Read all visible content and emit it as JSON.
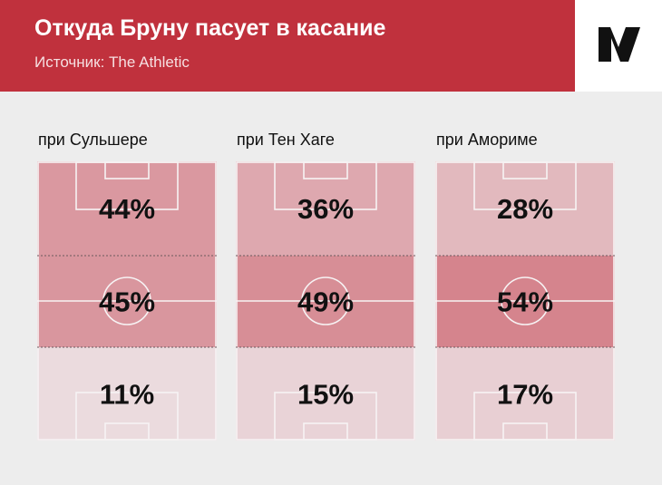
{
  "header": {
    "title": "Откуда Бруну пасует в касание",
    "subtitle": "Источник: The Athletic"
  },
  "logo": {
    "icon": "the-athletic-logo-icon"
  },
  "colors": {
    "header_bg": "#c0313d",
    "background": "#ededed",
    "zone_low": "#ecdde0",
    "zone_high": "#d4828b"
  },
  "chart_data": {
    "type": "heatmap",
    "title": "Откуда Бруну пасует в касание",
    "subtitle": "Источник: The Athletic",
    "unit": "%",
    "zones": [
      "attacking third",
      "middle third",
      "defensive third"
    ],
    "panels": [
      {
        "label": "при Сульшере",
        "values": [
          44,
          45,
          11
        ]
      },
      {
        "label": "при Тен Хаге",
        "values": [
          36,
          49,
          15
        ]
      },
      {
        "label": "при Амориме",
        "values": [
          28,
          54,
          17
        ]
      }
    ]
  }
}
